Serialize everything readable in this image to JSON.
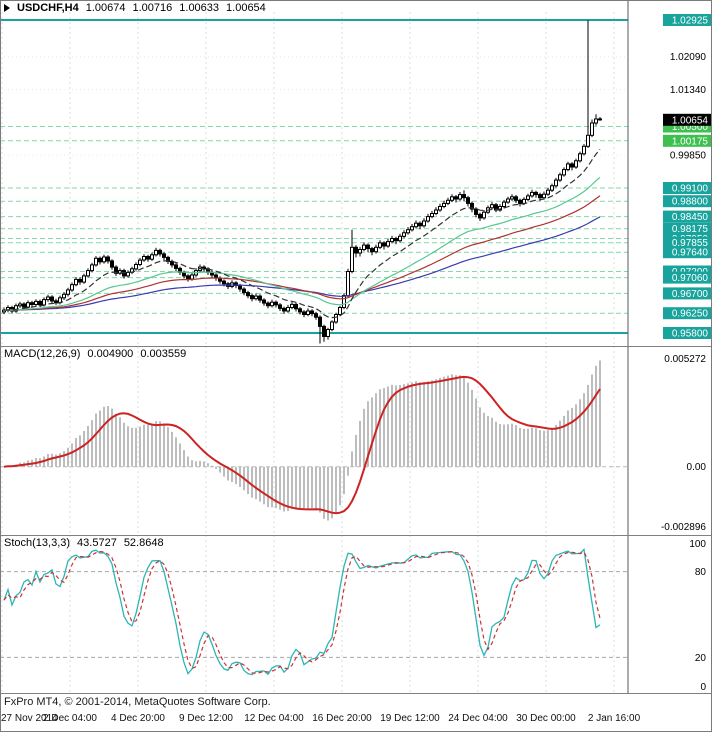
{
  "window": {
    "symbol_period": "USDCHF,H4",
    "ohlc": {
      "open": "1.00674",
      "high": "1.00716",
      "low": "1.00633",
      "close": "1.00654"
    }
  },
  "footer": {
    "copyright": "FxPro MT4, © 2001-2014, MetaQuotes Software Corp."
  },
  "colors": {
    "level_teal": "#18a49c",
    "level_green": "#3fbf4f",
    "level_line": "#84d9a4",
    "current_price_bg": "#000000",
    "candle_up": "#ffffff",
    "candle_down": "#000000",
    "candle_border": "#000000",
    "macd_hist": "#bdbdbd",
    "macd_signal": "#cc2222",
    "stoch_main": "#2ab6b6",
    "stoch_signal": "#cc3333",
    "grid": "#dcdcdc",
    "axis_line": "#5a5a5a",
    "separator": "#808080",
    "text": "#000000"
  },
  "chart_data": {
    "type": "candlestick",
    "symbol": "USDCHF",
    "timeframe": "H4",
    "x_labels": [
      "27 Nov 2014",
      "2 Dec 04:00",
      "4 Dec 20:00",
      "9 Dec 12:00",
      "12 Dec 04:00",
      "16 Dec 20:00",
      "19 Dec 12:00",
      "24 Dec 04:00",
      "30 Dec 00:00",
      "2 Jan 16:00"
    ],
    "main": {
      "y_ticks": [
        {
          "price": 1.0209,
          "label": "1.02090"
        },
        {
          "price": 1.0134,
          "label": "1.01340"
        },
        {
          "price": 0.9985,
          "label": "0.99850"
        }
      ],
      "current_price": {
        "price": 1.00654,
        "label": "1.00654"
      },
      "levels": [
        {
          "price": 1.02925,
          "label": "1.02925",
          "color": "#18a49c",
          "solid": true
        },
        {
          "price": 1.005,
          "label": "1.00500",
          "color": "#3fbf4f",
          "solid": false
        },
        {
          "price": 1.00175,
          "label": "1.00175",
          "color": "#3fbf4f",
          "solid": false
        },
        {
          "price": 0.991,
          "label": "0.99100",
          "color": "#18a49c",
          "solid": false
        },
        {
          "price": 0.988,
          "label": "0.98800",
          "color": "#18a49c",
          "solid": false
        },
        {
          "price": 0.9845,
          "label": "0.98450",
          "color": "#18a49c",
          "solid": false
        },
        {
          "price": 0.98175,
          "label": "0.98175",
          "color": "#18a49c",
          "solid": false
        },
        {
          "price": 0.9795,
          "label": "0.97950",
          "color": "#18a49c",
          "solid": false
        },
        {
          "price": 0.97855,
          "label": "0.97855",
          "color": "#18a49c",
          "solid": false
        },
        {
          "price": 0.9764,
          "label": "0.97640",
          "color": "#18a49c",
          "solid": false
        },
        {
          "price": 0.972,
          "label": "0.97200",
          "color": "#18a49c",
          "solid": false
        },
        {
          "price": 0.9706,
          "label": "0.97060",
          "color": "#18a49c",
          "solid": false
        },
        {
          "price": 0.967,
          "label": "0.96700",
          "color": "#18a49c",
          "solid": false
        },
        {
          "price": 0.9625,
          "label": "0.96250",
          "color": "#18a49c",
          "solid": false
        },
        {
          "price": 0.958,
          "label": "0.95800",
          "color": "#18a49c",
          "solid": true
        }
      ],
      "moving_averages": [
        {
          "period": 89,
          "color": "#3a3ab0",
          "dashed": false
        },
        {
          "period": 55,
          "color": "#b03030",
          "dashed": false
        },
        {
          "period": 34,
          "color": "#57c78f",
          "dashed": false
        },
        {
          "period": 13,
          "color": "#333333",
          "dashed": true
        }
      ],
      "candles": [
        [
          0.9628,
          0.9638,
          0.9623,
          0.9632
        ],
        [
          0.9632,
          0.9643,
          0.9627,
          0.9638
        ],
        [
          0.9638,
          0.9642,
          0.9625,
          0.963
        ],
        [
          0.963,
          0.9647,
          0.9626,
          0.9642
        ],
        [
          0.9642,
          0.9651,
          0.9637,
          0.9646
        ],
        [
          0.9646,
          0.965,
          0.9634,
          0.9639
        ],
        [
          0.9639,
          0.9654,
          0.9635,
          0.9649
        ],
        [
          0.9649,
          0.9653,
          0.964,
          0.9645
        ],
        [
          0.9645,
          0.9657,
          0.9641,
          0.9652
        ],
        [
          0.9652,
          0.9656,
          0.9639,
          0.9644
        ],
        [
          0.9644,
          0.9661,
          0.964,
          0.9656
        ],
        [
          0.9656,
          0.9667,
          0.9651,
          0.9662
        ],
        [
          0.9662,
          0.9666,
          0.9648,
          0.9653
        ],
        [
          0.9653,
          0.9658,
          0.9644,
          0.9649
        ],
        [
          0.9649,
          0.9665,
          0.9645,
          0.966
        ],
        [
          0.966,
          0.9673,
          0.9655,
          0.9668
        ],
        [
          0.9668,
          0.9683,
          0.9663,
          0.9678
        ],
        [
          0.9678,
          0.9695,
          0.9674,
          0.969
        ],
        [
          0.969,
          0.9707,
          0.9686,
          0.9702
        ],
        [
          0.9702,
          0.9707,
          0.969,
          0.9696
        ],
        [
          0.9696,
          0.9715,
          0.9692,
          0.971
        ],
        [
          0.971,
          0.9727,
          0.9706,
          0.9722
        ],
        [
          0.9722,
          0.974,
          0.9718,
          0.9735
        ],
        [
          0.9735,
          0.9755,
          0.9731,
          0.975
        ],
        [
          0.975,
          0.9754,
          0.9736,
          0.9742
        ],
        [
          0.9742,
          0.9758,
          0.9738,
          0.9753
        ],
        [
          0.9753,
          0.9757,
          0.9738,
          0.9744
        ],
        [
          0.9744,
          0.9748,
          0.9724,
          0.973
        ],
        [
          0.973,
          0.9734,
          0.971,
          0.9716
        ],
        [
          0.9716,
          0.9727,
          0.9712,
          0.9722
        ],
        [
          0.9722,
          0.9726,
          0.9704,
          0.971
        ],
        [
          0.971,
          0.9723,
          0.9706,
          0.9718
        ],
        [
          0.9718,
          0.9731,
          0.9714,
          0.9726
        ],
        [
          0.9726,
          0.9741,
          0.9722,
          0.9736
        ],
        [
          0.9736,
          0.9751,
          0.9732,
          0.9746
        ],
        [
          0.9746,
          0.9759,
          0.9742,
          0.9754
        ],
        [
          0.9754,
          0.9758,
          0.9742,
          0.9748
        ],
        [
          0.9748,
          0.9763,
          0.9744,
          0.9758
        ],
        [
          0.9758,
          0.9774,
          0.9754,
          0.9768
        ],
        [
          0.9768,
          0.9772,
          0.9754,
          0.976
        ],
        [
          0.976,
          0.9764,
          0.9746,
          0.9752
        ],
        [
          0.9752,
          0.9756,
          0.9737,
          0.9743
        ],
        [
          0.9743,
          0.9747,
          0.9729,
          0.9735
        ],
        [
          0.9735,
          0.9739,
          0.9721,
          0.9727
        ],
        [
          0.9727,
          0.9731,
          0.9712,
          0.9718
        ],
        [
          0.9718,
          0.9722,
          0.9704,
          0.971
        ],
        [
          0.971,
          0.9714,
          0.9697,
          0.9703
        ],
        [
          0.9703,
          0.9718,
          0.9699,
          0.9712
        ],
        [
          0.9712,
          0.9728,
          0.9708,
          0.9722
        ],
        [
          0.9722,
          0.9736,
          0.9718,
          0.973
        ],
        [
          0.973,
          0.9734,
          0.972,
          0.9726
        ],
        [
          0.9726,
          0.973,
          0.9712,
          0.9718
        ],
        [
          0.9718,
          0.9722,
          0.9706,
          0.9712
        ],
        [
          0.9712,
          0.9716,
          0.9699,
          0.9705
        ],
        [
          0.9705,
          0.9709,
          0.9692,
          0.9698
        ],
        [
          0.9698,
          0.9702,
          0.9686,
          0.9692
        ],
        [
          0.9692,
          0.9696,
          0.968,
          0.9686
        ],
        [
          0.9686,
          0.97,
          0.9682,
          0.9694
        ],
        [
          0.9694,
          0.9698,
          0.9682,
          0.9688
        ],
        [
          0.9688,
          0.9692,
          0.9674,
          0.968
        ],
        [
          0.968,
          0.9684,
          0.9666,
          0.9672
        ],
        [
          0.9672,
          0.9676,
          0.9659,
          0.9665
        ],
        [
          0.9665,
          0.9669,
          0.9652,
          0.9658
        ],
        [
          0.9658,
          0.967,
          0.9654,
          0.9664
        ],
        [
          0.9664,
          0.9668,
          0.9649,
          0.9655
        ],
        [
          0.9655,
          0.9659,
          0.9642,
          0.9648
        ],
        [
          0.9648,
          0.9652,
          0.9636,
          0.9642
        ],
        [
          0.9642,
          0.9656,
          0.9638,
          0.965
        ],
        [
          0.965,
          0.9654,
          0.9638,
          0.9644
        ],
        [
          0.9644,
          0.9648,
          0.963,
          0.9636
        ],
        [
          0.9636,
          0.964,
          0.9624,
          0.963
        ],
        [
          0.963,
          0.9644,
          0.9626,
          0.9638
        ],
        [
          0.9638,
          0.9651,
          0.9634,
          0.9645
        ],
        [
          0.9645,
          0.9649,
          0.9629,
          0.9635
        ],
        [
          0.9635,
          0.9639,
          0.9622,
          0.9628
        ],
        [
          0.9628,
          0.9632,
          0.9616,
          0.9622
        ],
        [
          0.9622,
          0.9636,
          0.9618,
          0.963
        ],
        [
          0.963,
          0.9634,
          0.9618,
          0.9624
        ],
        [
          0.9624,
          0.9628,
          0.961,
          0.9616
        ],
        [
          0.9616,
          0.962,
          0.9556,
          0.9595
        ],
        [
          0.9595,
          0.9599,
          0.956,
          0.9572
        ],
        [
          0.9572,
          0.9592,
          0.9565,
          0.9588
        ],
        [
          0.9588,
          0.9609,
          0.9584,
          0.9605
        ],
        [
          0.9605,
          0.9626,
          0.9601,
          0.9622
        ],
        [
          0.9622,
          0.9642,
          0.9618,
          0.9638
        ],
        [
          0.9638,
          0.967,
          0.9634,
          0.9665
        ],
        [
          0.9665,
          0.9726,
          0.9661,
          0.972
        ],
        [
          0.972,
          0.9815,
          0.9716,
          0.9775
        ],
        [
          0.9775,
          0.978,
          0.9752,
          0.9762
        ],
        [
          0.9762,
          0.9776,
          0.9754,
          0.977
        ],
        [
          0.977,
          0.9786,
          0.9766,
          0.978
        ],
        [
          0.978,
          0.9784,
          0.9764,
          0.9772
        ],
        [
          0.9772,
          0.9776,
          0.9757,
          0.9765
        ],
        [
          0.9765,
          0.9781,
          0.9761,
          0.9775
        ],
        [
          0.9775,
          0.9791,
          0.9771,
          0.9785
        ],
        [
          0.9785,
          0.9789,
          0.977,
          0.9778
        ],
        [
          0.9778,
          0.9794,
          0.9774,
          0.9788
        ],
        [
          0.9788,
          0.9801,
          0.9784,
          0.9795
        ],
        [
          0.9795,
          0.9799,
          0.9782,
          0.979
        ],
        [
          0.979,
          0.9806,
          0.9786,
          0.98
        ],
        [
          0.98,
          0.9814,
          0.9796,
          0.9808
        ],
        [
          0.9808,
          0.9821,
          0.9804,
          0.9815
        ],
        [
          0.9815,
          0.9828,
          0.9811,
          0.9822
        ],
        [
          0.9822,
          0.9836,
          0.9818,
          0.983
        ],
        [
          0.983,
          0.9834,
          0.9816,
          0.9824
        ],
        [
          0.9824,
          0.9841,
          0.982,
          0.9835
        ],
        [
          0.9835,
          0.9851,
          0.9831,
          0.9845
        ],
        [
          0.9845,
          0.9858,
          0.9841,
          0.9852
        ],
        [
          0.9852,
          0.9866,
          0.9848,
          0.986
        ],
        [
          0.986,
          0.9874,
          0.9856,
          0.9868
        ],
        [
          0.9868,
          0.9881,
          0.9864,
          0.9875
        ],
        [
          0.9875,
          0.9888,
          0.9871,
          0.9882
        ],
        [
          0.9882,
          0.9896,
          0.9878,
          0.989
        ],
        [
          0.989,
          0.9894,
          0.9877,
          0.9885
        ],
        [
          0.9885,
          0.9901,
          0.9881,
          0.9895
        ],
        [
          0.9895,
          0.9905,
          0.988,
          0.9888
        ],
        [
          0.9888,
          0.9892,
          0.9868,
          0.9875
        ],
        [
          0.9875,
          0.9879,
          0.9855,
          0.9862
        ],
        [
          0.9862,
          0.9866,
          0.9843,
          0.985
        ],
        [
          0.985,
          0.9854,
          0.9835,
          0.9842
        ],
        [
          0.9842,
          0.986,
          0.9838,
          0.9855
        ],
        [
          0.9855,
          0.987,
          0.9851,
          0.9865
        ],
        [
          0.9865,
          0.9878,
          0.9861,
          0.9872
        ],
        [
          0.9872,
          0.9876,
          0.9855,
          0.986
        ],
        [
          0.986,
          0.9873,
          0.9856,
          0.9868
        ],
        [
          0.9868,
          0.9883,
          0.9864,
          0.9878
        ],
        [
          0.9878,
          0.989,
          0.9874,
          0.9885
        ],
        [
          0.9885,
          0.9896,
          0.9881,
          0.989
        ],
        [
          0.989,
          0.9894,
          0.9876,
          0.9882
        ],
        [
          0.9882,
          0.9886,
          0.9868,
          0.9875
        ],
        [
          0.9875,
          0.9889,
          0.9871,
          0.9884
        ],
        [
          0.9884,
          0.9897,
          0.988,
          0.9892
        ],
        [
          0.9892,
          0.9906,
          0.9888,
          0.99
        ],
        [
          0.99,
          0.9904,
          0.9888,
          0.9895
        ],
        [
          0.9895,
          0.9899,
          0.9881,
          0.9888
        ],
        [
          0.9888,
          0.9902,
          0.9884,
          0.9896
        ],
        [
          0.9896,
          0.991,
          0.9892,
          0.9905
        ],
        [
          0.9905,
          0.992,
          0.9901,
          0.9915
        ],
        [
          0.9915,
          0.9933,
          0.9911,
          0.9928
        ],
        [
          0.9928,
          0.9945,
          0.9924,
          0.994
        ],
        [
          0.994,
          0.9957,
          0.9936,
          0.9952
        ],
        [
          0.9952,
          0.997,
          0.9948,
          0.9965
        ],
        [
          0.9965,
          0.9969,
          0.995,
          0.9958
        ],
        [
          0.9958,
          0.9977,
          0.9954,
          0.9972
        ],
        [
          0.9972,
          0.9993,
          0.9968,
          0.9988
        ],
        [
          0.9988,
          1.001,
          0.9984,
          1.0005
        ],
        [
          1.0005,
          1.0292,
          1.0001,
          1.003
        ],
        [
          1.003,
          1.0066,
          1.0026,
          1.0058
        ],
        [
          1.0058,
          1.0078,
          1.0052,
          1.0067
        ],
        [
          1.00674,
          1.00716,
          1.00633,
          1.00654
        ]
      ]
    },
    "macd": {
      "label": "MACD(12,26,9)",
      "params": [
        12,
        26,
        9
      ],
      "value": "0.004900",
      "signal_value": "0.003559",
      "axis_labels": [
        "0.005272",
        "0.00",
        "-0.002896"
      ]
    },
    "stoch": {
      "label": "Stoch(13,3,3)",
      "params": [
        13,
        3,
        3
      ],
      "value": "43.5727",
      "signal_value": "52.8648",
      "axis_labels": [
        "100",
        "80",
        "20",
        "0"
      ],
      "levels": [
        80,
        20
      ]
    }
  }
}
